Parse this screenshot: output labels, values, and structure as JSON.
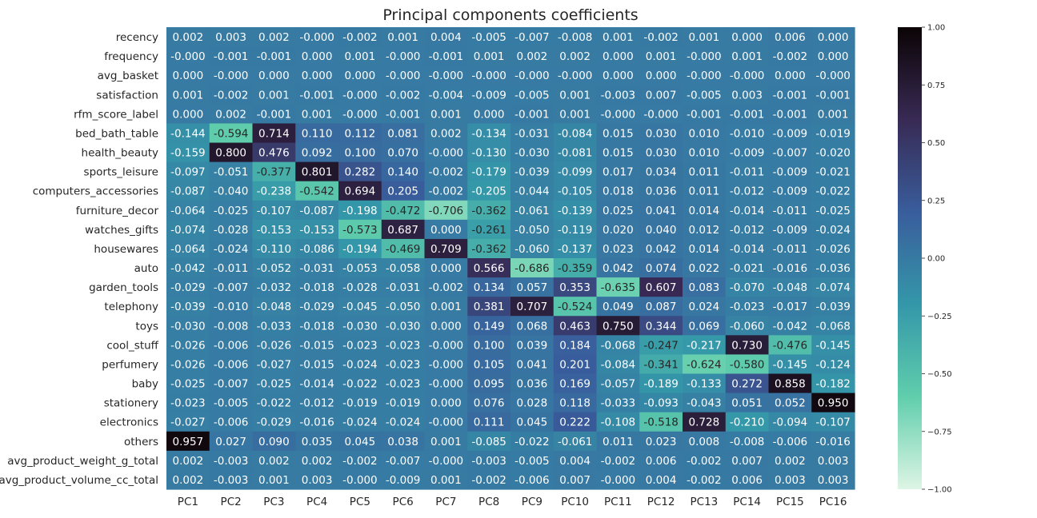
{
  "chart_data": {
    "type": "heatmap",
    "title": "Principal components coefficients",
    "xlabel": "",
    "ylabel": "",
    "x_labels": [
      "PC1",
      "PC2",
      "PC3",
      "PC4",
      "PC5",
      "PC6",
      "PC7",
      "PC8",
      "PC9",
      "PC10",
      "PC11",
      "PC12",
      "PC13",
      "PC14",
      "PC15",
      "PC16"
    ],
    "y_labels": [
      "recency",
      "frequency",
      "avg_basket",
      "satisfaction",
      "rfm_score_label",
      "bed_bath_table",
      "health_beauty",
      "sports_leisure",
      "computers_accessories",
      "furniture_decor",
      "watches_gifts",
      "housewares",
      "auto",
      "garden_tools",
      "telephony",
      "toys",
      "cool_stuff",
      "perfumery",
      "baby",
      "stationery",
      "electronics",
      "others",
      "avg_product_weight_g_total",
      "avg_product_volume_cc_total"
    ],
    "values": [
      [
        "0.002",
        "0.003",
        "0.002",
        "-0.000",
        "-0.002",
        "0.001",
        "0.004",
        "-0.005",
        "-0.007",
        "-0.008",
        "0.001",
        "-0.002",
        "0.001",
        "0.000",
        "0.006",
        "0.000"
      ],
      [
        "-0.000",
        "-0.001",
        "-0.001",
        "0.000",
        "0.001",
        "-0.000",
        "-0.001",
        "0.001",
        "0.002",
        "0.002",
        "0.000",
        "0.001",
        "-0.000",
        "0.001",
        "-0.002",
        "0.000"
      ],
      [
        "0.000",
        "-0.000",
        "0.000",
        "0.000",
        "0.000",
        "-0.000",
        "-0.000",
        "-0.000",
        "-0.000",
        "-0.000",
        "0.000",
        "0.000",
        "-0.000",
        "-0.000",
        "0.000",
        "-0.000"
      ],
      [
        "0.001",
        "-0.002",
        "0.001",
        "-0.001",
        "-0.000",
        "-0.002",
        "-0.004",
        "-0.009",
        "-0.005",
        "0.001",
        "-0.003",
        "0.007",
        "-0.005",
        "0.003",
        "-0.001",
        "-0.001"
      ],
      [
        "0.000",
        "0.002",
        "-0.001",
        "0.001",
        "-0.000",
        "-0.001",
        "0.001",
        "0.000",
        "-0.001",
        "0.001",
        "-0.000",
        "-0.000",
        "-0.001",
        "-0.001",
        "-0.001",
        "0.001"
      ],
      [
        "-0.144",
        "-0.594",
        "0.714",
        "0.110",
        "0.112",
        "0.081",
        "0.002",
        "-0.134",
        "-0.031",
        "-0.084",
        "0.015",
        "0.030",
        "0.010",
        "-0.010",
        "-0.009",
        "-0.019"
      ],
      [
        "-0.159",
        "0.800",
        "0.476",
        "0.092",
        "0.100",
        "0.070",
        "-0.000",
        "-0.130",
        "-0.030",
        "-0.081",
        "0.015",
        "0.030",
        "0.010",
        "-0.009",
        "-0.007",
        "-0.020"
      ],
      [
        "-0.097",
        "-0.051",
        "-0.377",
        "0.801",
        "0.282",
        "0.140",
        "-0.002",
        "-0.179",
        "-0.039",
        "-0.099",
        "0.017",
        "0.034",
        "0.011",
        "-0.011",
        "-0.009",
        "-0.021"
      ],
      [
        "-0.087",
        "-0.040",
        "-0.238",
        "-0.542",
        "0.694",
        "0.205",
        "-0.002",
        "-0.205",
        "-0.044",
        "-0.105",
        "0.018",
        "0.036",
        "0.011",
        "-0.012",
        "-0.009",
        "-0.022"
      ],
      [
        "-0.064",
        "-0.025",
        "-0.107",
        "-0.087",
        "-0.198",
        "-0.472",
        "-0.706",
        "-0.362",
        "-0.061",
        "-0.139",
        "0.025",
        "0.041",
        "0.014",
        "-0.014",
        "-0.011",
        "-0.025"
      ],
      [
        "-0.074",
        "-0.028",
        "-0.153",
        "-0.153",
        "-0.573",
        "0.687",
        "0.000",
        "-0.261",
        "-0.050",
        "-0.119",
        "0.020",
        "0.040",
        "0.012",
        "-0.012",
        "-0.009",
        "-0.024"
      ],
      [
        "-0.064",
        "-0.024",
        "-0.110",
        "-0.086",
        "-0.194",
        "-0.469",
        "0.709",
        "-0.362",
        "-0.060",
        "-0.137",
        "0.023",
        "0.042",
        "0.014",
        "-0.014",
        "-0.011",
        "-0.026"
      ],
      [
        "-0.042",
        "-0.011",
        "-0.052",
        "-0.031",
        "-0.053",
        "-0.058",
        "0.000",
        "0.566",
        "-0.686",
        "-0.359",
        "0.042",
        "0.074",
        "0.022",
        "-0.021",
        "-0.016",
        "-0.036"
      ],
      [
        "-0.029",
        "-0.007",
        "-0.032",
        "-0.018",
        "-0.028",
        "-0.031",
        "-0.002",
        "0.134",
        "0.057",
        "0.353",
        "-0.635",
        "0.607",
        "0.083",
        "-0.070",
        "-0.048",
        "-0.074"
      ],
      [
        "-0.039",
        "-0.010",
        "-0.048",
        "-0.029",
        "-0.045",
        "-0.050",
        "0.001",
        "0.381",
        "0.707",
        "-0.524",
        "0.049",
        "0.087",
        "0.024",
        "-0.023",
        "-0.017",
        "-0.039"
      ],
      [
        "-0.030",
        "-0.008",
        "-0.033",
        "-0.018",
        "-0.030",
        "-0.030",
        "0.000",
        "0.149",
        "0.068",
        "0.463",
        "0.750",
        "0.344",
        "0.069",
        "-0.060",
        "-0.042",
        "-0.068"
      ],
      [
        "-0.026",
        "-0.006",
        "-0.026",
        "-0.015",
        "-0.023",
        "-0.023",
        "-0.000",
        "0.100",
        "0.039",
        "0.184",
        "-0.068",
        "-0.247",
        "-0.217",
        "0.730",
        "-0.476",
        "-0.145"
      ],
      [
        "-0.026",
        "-0.006",
        "-0.027",
        "-0.015",
        "-0.024",
        "-0.023",
        "-0.000",
        "0.105",
        "0.041",
        "0.201",
        "-0.084",
        "-0.341",
        "-0.624",
        "-0.580",
        "-0.145",
        "-0.124"
      ],
      [
        "-0.025",
        "-0.007",
        "-0.025",
        "-0.014",
        "-0.022",
        "-0.023",
        "-0.000",
        "0.095",
        "0.036",
        "0.169",
        "-0.057",
        "-0.189",
        "-0.133",
        "0.272",
        "0.858",
        "-0.182"
      ],
      [
        "-0.023",
        "-0.005",
        "-0.022",
        "-0.012",
        "-0.019",
        "-0.019",
        "0.000",
        "0.076",
        "0.028",
        "0.118",
        "-0.033",
        "-0.093",
        "-0.043",
        "0.051",
        "0.052",
        "0.950"
      ],
      [
        "-0.027",
        "-0.006",
        "-0.029",
        "-0.016",
        "-0.024",
        "-0.024",
        "-0.000",
        "0.111",
        "0.045",
        "0.222",
        "-0.108",
        "-0.518",
        "0.728",
        "-0.210",
        "-0.094",
        "-0.107"
      ],
      [
        "0.957",
        "0.027",
        "0.090",
        "0.035",
        "0.045",
        "0.038",
        "0.001",
        "-0.085",
        "-0.022",
        "-0.061",
        "0.011",
        "0.023",
        "0.008",
        "-0.008",
        "-0.006",
        "-0.016"
      ],
      [
        "0.002",
        "-0.003",
        "0.002",
        "0.002",
        "-0.002",
        "-0.007",
        "-0.000",
        "-0.003",
        "-0.005",
        "0.004",
        "-0.002",
        "0.006",
        "-0.002",
        "0.007",
        "0.002",
        "0.003"
      ],
      [
        "0.002",
        "-0.003",
        "0.001",
        "0.003",
        "-0.000",
        "-0.009",
        "0.001",
        "-0.002",
        "-0.006",
        "0.007",
        "-0.000",
        "0.004",
        "-0.002",
        "0.006",
        "0.003",
        "0.003"
      ]
    ],
    "colorbar": {
      "range": [
        -1,
        1
      ],
      "ticks": [
        "1.00",
        "0.75",
        "0.50",
        "0.25",
        "0.00",
        "−0.25",
        "−0.50",
        "−0.75",
        "−1.00"
      ],
      "colormap": [
        "#def5e5",
        "#60ceac",
        "#3497a9",
        "#395d9c",
        "#382a54",
        "#0b0405"
      ]
    },
    "legend": "colorbar right",
    "grid": false
  }
}
